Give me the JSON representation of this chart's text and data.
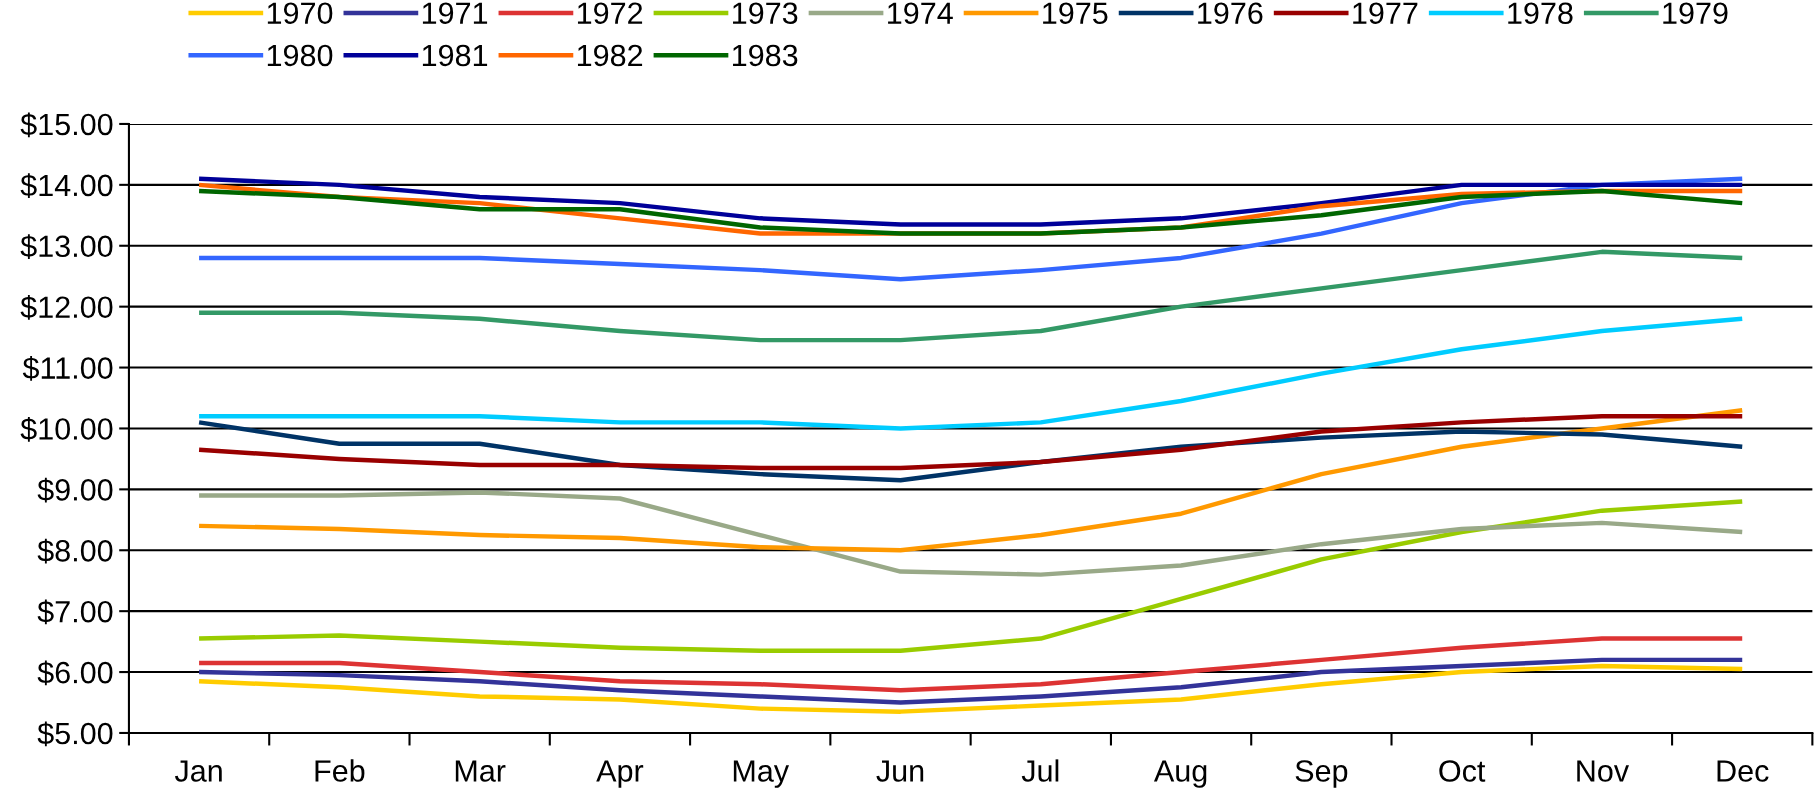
{
  "chart_data": {
    "type": "line",
    "categories": [
      "Jan",
      "Feb",
      "Mar",
      "Apr",
      "May",
      "Jun",
      "Jul",
      "Aug",
      "Sep",
      "Oct",
      "Nov",
      "Dec"
    ],
    "series": [
      {
        "name": "1970",
        "color": "#ffcc00",
        "values": [
          5.85,
          5.75,
          5.6,
          5.55,
          5.4,
          5.35,
          5.45,
          5.55,
          5.8,
          6.0,
          6.1,
          6.05
        ]
      },
      {
        "name": "1971",
        "color": "#333399",
        "values": [
          6.0,
          5.95,
          5.85,
          5.7,
          5.6,
          5.5,
          5.6,
          5.75,
          6.0,
          6.1,
          6.2,
          6.2
        ]
      },
      {
        "name": "1972",
        "color": "#dd3333",
        "values": [
          6.15,
          6.15,
          6.0,
          5.85,
          5.8,
          5.7,
          5.8,
          6.0,
          6.2,
          6.4,
          6.55,
          6.55
        ]
      },
      {
        "name": "1973",
        "color": "#99cc00",
        "values": [
          6.55,
          6.6,
          6.5,
          6.4,
          6.35,
          6.35,
          6.55,
          7.2,
          7.85,
          8.3,
          8.65,
          8.8
        ]
      },
      {
        "name": "1974",
        "color": "#99a988",
        "values": [
          8.9,
          8.9,
          8.95,
          8.85,
          8.25,
          7.65,
          7.6,
          7.75,
          8.1,
          8.35,
          8.45,
          8.3
        ]
      },
      {
        "name": "1975",
        "color": "#ff9900",
        "values": [
          8.4,
          8.35,
          8.25,
          8.2,
          8.05,
          8.0,
          8.25,
          8.6,
          9.25,
          9.7,
          10.0,
          10.3
        ]
      },
      {
        "name": "1976",
        "color": "#003366",
        "values": [
          10.1,
          9.75,
          9.75,
          9.4,
          9.25,
          9.15,
          9.45,
          9.7,
          9.85,
          9.95,
          9.9,
          9.7
        ]
      },
      {
        "name": "1977",
        "color": "#990000",
        "values": [
          9.65,
          9.5,
          9.4,
          9.4,
          9.35,
          9.35,
          9.45,
          9.65,
          9.95,
          10.1,
          10.2,
          10.2
        ]
      },
      {
        "name": "1978",
        "color": "#00ccff",
        "values": [
          10.2,
          10.2,
          10.2,
          10.1,
          10.1,
          10.0,
          10.1,
          10.45,
          10.9,
          11.3,
          11.6,
          11.8
        ]
      },
      {
        "name": "1979",
        "color": "#339966",
        "values": [
          11.9,
          11.9,
          11.8,
          11.6,
          11.45,
          11.45,
          11.6,
          12.0,
          12.3,
          12.6,
          12.9,
          12.8
        ]
      },
      {
        "name": "1980",
        "color": "#3366ff",
        "values": [
          12.8,
          12.8,
          12.8,
          12.7,
          12.6,
          12.45,
          12.6,
          12.8,
          13.2,
          13.7,
          14.0,
          14.1
        ]
      },
      {
        "name": "1981",
        "color": "#000099",
        "values": [
          14.1,
          14.0,
          13.8,
          13.7,
          13.45,
          13.35,
          13.35,
          13.45,
          13.7,
          14.0,
          14.0,
          14.0
        ]
      },
      {
        "name": "1982",
        "color": "#ff6600",
        "values": [
          14.0,
          13.8,
          13.7,
          13.45,
          13.2,
          13.2,
          13.2,
          13.3,
          13.65,
          13.85,
          13.9,
          13.9
        ]
      },
      {
        "name": "1983",
        "color": "#006600",
        "values": [
          13.9,
          13.8,
          13.6,
          13.6,
          13.3,
          13.2,
          13.2,
          13.3,
          13.5,
          13.8,
          13.9,
          13.7
        ]
      }
    ],
    "ylim": [
      5,
      15
    ],
    "yticks": [
      {
        "value": 5,
        "label": "$5.00"
      },
      {
        "value": 6,
        "label": "$6.00"
      },
      {
        "value": 7,
        "label": "$7.00"
      },
      {
        "value": 8,
        "label": "$8.00"
      },
      {
        "value": 9,
        "label": "$9.00"
      },
      {
        "value": 10,
        "label": "$10.00"
      },
      {
        "value": 11,
        "label": "$11.00"
      },
      {
        "value": 12,
        "label": "$12.00"
      },
      {
        "value": 13,
        "label": "$13.00"
      },
      {
        "value": 14,
        "label": "$14.00"
      },
      {
        "value": 15,
        "label": "$15.00"
      }
    ],
    "grid": "y",
    "legend": "top",
    "marker": "none",
    "line_style": "solid"
  }
}
